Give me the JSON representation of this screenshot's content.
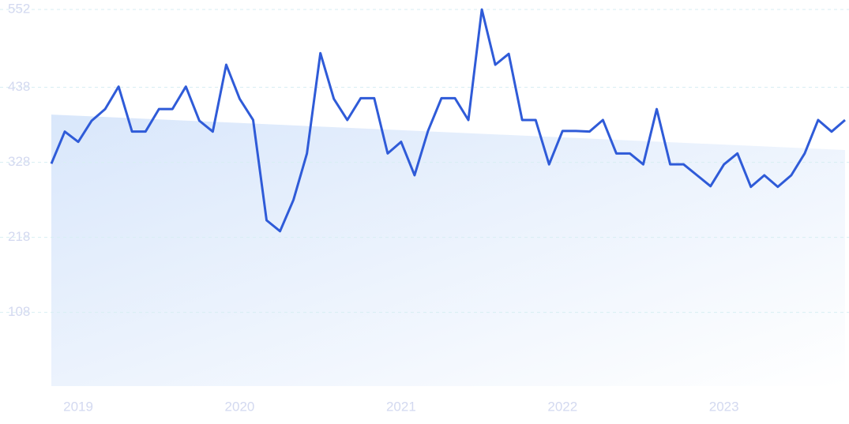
{
  "chart_data": {
    "type": "line",
    "categories": [
      null,
      null,
      "2019",
      null,
      null,
      null,
      null,
      null,
      null,
      null,
      null,
      null,
      null,
      null,
      "2020",
      null,
      null,
      null,
      null,
      null,
      null,
      null,
      null,
      null,
      null,
      null,
      "2021",
      null,
      null,
      null,
      null,
      null,
      null,
      null,
      null,
      null,
      null,
      null,
      "2022",
      null,
      null,
      null,
      null,
      null,
      null,
      null,
      null,
      null,
      null,
      null,
      "2023",
      null,
      null,
      null,
      null,
      null,
      null,
      null,
      null,
      null
    ],
    "series": [
      {
        "color": "#2f5bd8",
        "values": [
          326,
          373,
          358,
          389,
          406,
          439,
          373,
          373,
          406,
          406,
          439,
          389,
          373,
          471,
          421,
          390,
          243,
          227,
          273,
          341,
          488,
          421,
          390,
          422,
          422,
          341,
          358,
          309,
          374,
          422,
          422,
          390,
          552,
          471,
          487,
          390,
          390,
          325,
          374,
          374,
          373,
          390,
          341,
          341,
          325,
          406,
          325,
          325,
          309,
          293,
          325,
          341,
          292,
          309,
          292,
          309,
          341,
          390,
          373,
          390
        ]
      }
    ],
    "trend": [
      398,
      346
    ],
    "ylim": [
      0,
      552
    ],
    "yticks": [
      108,
      218,
      328,
      438,
      552
    ],
    "grid": true
  }
}
